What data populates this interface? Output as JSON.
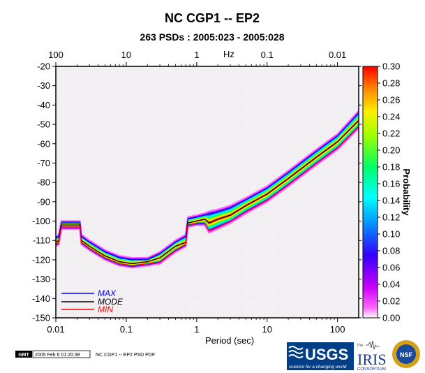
{
  "chart_data": {
    "type": "line",
    "title": "NC CGP1 -- EP2",
    "subtitle": "263 PSDs : 2005:023 - 2005:028",
    "xlabel": "Period (sec)",
    "top_axis_label": "Hz",
    "colorbar_label": "Probability",
    "x_scale": "log",
    "xlim": [
      0.01,
      200
    ],
    "ylim": [
      -150,
      -20
    ],
    "x_ticks": [
      {
        "value": 0.01,
        "label": "0.01"
      },
      {
        "value": 0.1,
        "label": "0.1"
      },
      {
        "value": 1,
        "label": "1"
      },
      {
        "value": 10,
        "label": "10"
      },
      {
        "value": 100,
        "label": "100"
      }
    ],
    "top_ticks": [
      {
        "value": 0.01,
        "label": "100"
      },
      {
        "value": 0.1,
        "label": "10"
      },
      {
        "value": 1,
        "label": "1"
      },
      {
        "value": 10,
        "label": "0.1"
      },
      {
        "value": 100,
        "label": "0.01"
      }
    ],
    "y_ticks": [
      -20,
      -30,
      -40,
      -50,
      -60,
      -70,
      -80,
      -90,
      -100,
      -110,
      -120,
      -130,
      -140,
      -150
    ],
    "colorbar": {
      "min": 0.0,
      "max": 0.3,
      "ticks": [
        "0.30",
        "0.28",
        "0.26",
        "0.24",
        "0.22",
        "0.20",
        "0.18",
        "0.16",
        "0.14",
        "0.12",
        "0.10",
        "0.08",
        "0.06",
        "0.04",
        "0.02",
        "0.00"
      ]
    },
    "legend": [
      {
        "label": "MAX",
        "color": "#0000ff"
      },
      {
        "label": "MODE",
        "color": "#000000"
      },
      {
        "label": "MIN",
        "color": "#ff0000"
      }
    ],
    "legend_position": "bottom-left",
    "series": [
      {
        "name": "MAX",
        "x": [
          0.01,
          0.011,
          0.012,
          0.014,
          0.018,
          0.022,
          0.023,
          0.03,
          0.05,
          0.08,
          0.12,
          0.2,
          0.3,
          0.5,
          0.7,
          0.75,
          1.0,
          1.3,
          1.5,
          2.0,
          3,
          5,
          10,
          20,
          50,
          100,
          200
        ],
        "y": [
          -109,
          -108,
          -101,
          -101,
          -101,
          -101,
          -108,
          -111,
          -116,
          -119,
          -120,
          -120,
          -117,
          -111,
          -108,
          -99,
          -98,
          -97,
          -96,
          -95,
          -93,
          -89,
          -83,
          -75,
          -64,
          -56,
          -44
        ]
      },
      {
        "name": "MODE",
        "x": [
          0.01,
          0.011,
          0.012,
          0.014,
          0.018,
          0.022,
          0.023,
          0.03,
          0.05,
          0.08,
          0.12,
          0.2,
          0.3,
          0.5,
          0.7,
          0.75,
          1.0,
          1.3,
          1.5,
          2.0,
          3,
          5,
          10,
          20,
          50,
          100,
          200
        ],
        "y": [
          -111,
          -110,
          -102,
          -102,
          -102,
          -102,
          -110,
          -113,
          -118,
          -121,
          -122,
          -121,
          -119,
          -113,
          -111,
          -101,
          -100,
          -99,
          -101,
          -99,
          -97,
          -92,
          -86,
          -78,
          -67,
          -59,
          -48
        ]
      },
      {
        "name": "MIN",
        "x": [
          0.01,
          0.011,
          0.012,
          0.014,
          0.018,
          0.022,
          0.023,
          0.03,
          0.05,
          0.08,
          0.12,
          0.2,
          0.3,
          0.5,
          0.7,
          0.75,
          1.0,
          1.3,
          1.5,
          2.0,
          3,
          5,
          10,
          20,
          50,
          100,
          200
        ],
        "y": [
          -112,
          -111,
          -103,
          -103,
          -103,
          -103,
          -111,
          -114,
          -119,
          -122,
          -123,
          -122,
          -121,
          -115,
          -112,
          -102,
          -101,
          -101,
          -105,
          -103,
          -100,
          -95,
          -89,
          -81,
          -70,
          -62,
          -51
        ]
      }
    ]
  },
  "footer": {
    "gmt_badge": "GMT",
    "timestamp": "2005 Feb  6 01:20:38",
    "caption": "NC CGP1 -- EP2 PSD PDF",
    "usgs_logo": "USGS",
    "usgs_tagline": "science for a changing world",
    "iris_the": "the",
    "iris_logo": "IRIS",
    "iris_sub": "CONSORTIUM",
    "nsf_logo": "NSF"
  }
}
